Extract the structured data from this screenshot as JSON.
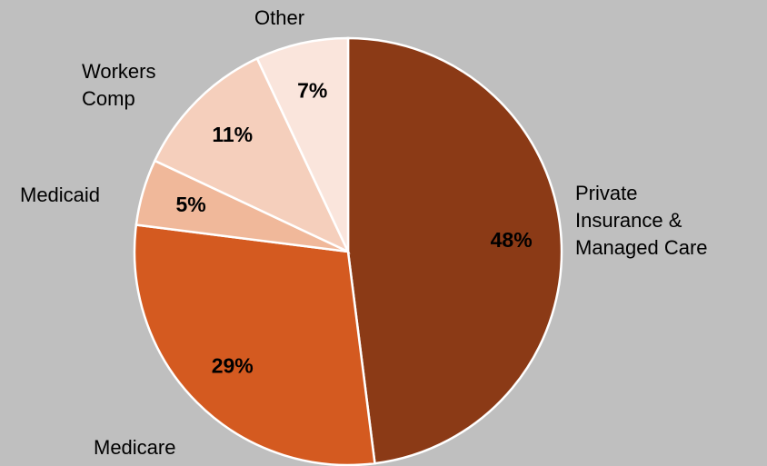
{
  "chart_data": {
    "type": "pie",
    "categories": [
      "Private Insurance & Managed Care",
      "Medicare",
      "Medicaid",
      "Workers Comp",
      "Other"
    ],
    "values": [
      48,
      29,
      5,
      11,
      7
    ],
    "value_labels": [
      "48%",
      "29%",
      "5%",
      "11%",
      "7%"
    ],
    "colors": [
      "#8b3a16",
      "#d45a20",
      "#f0b89a",
      "#f5cfbc",
      "#fae5dc"
    ]
  }
}
